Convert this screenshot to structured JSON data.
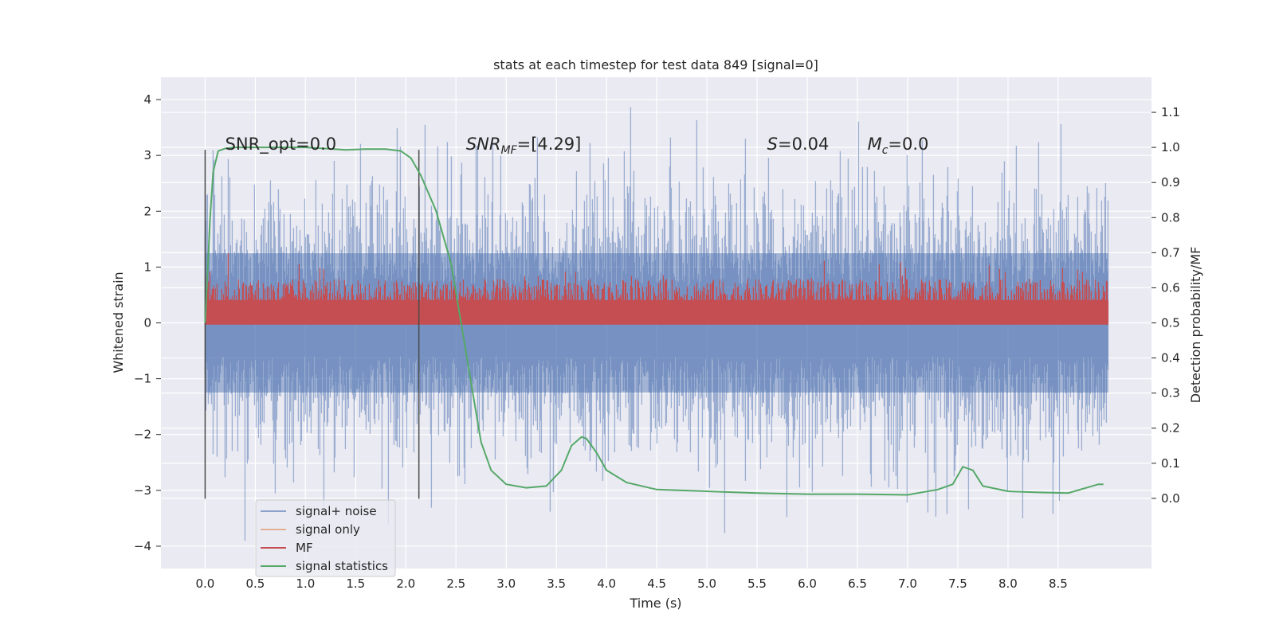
{
  "chart_data": {
    "type": "line",
    "title": "stats at each timestep for test data 849 [signal=0]",
    "xlabel": "Time (s)",
    "ylabel": "Whitened strain",
    "ylabel_right": "Detection probability/MF",
    "xlim": [
      -0.44,
      9.43
    ],
    "ylim": [
      -4.4,
      4.4
    ],
    "ylim_right": [
      -0.2,
      1.2
    ],
    "x_ticks": [
      0.0,
      0.5,
      1.0,
      1.5,
      2.0,
      2.5,
      3.0,
      3.5,
      4.0,
      4.5,
      5.0,
      5.5,
      6.0,
      6.5,
      7.0,
      7.5,
      8.0,
      8.5
    ],
    "x_tick_labels": [
      "0.0",
      "0.5",
      "1.0",
      "1.5",
      "2.0",
      "2.5",
      "3.0",
      "3.5",
      "4.0",
      "4.5",
      "5.0",
      "5.5",
      "6.0",
      "6.5",
      "7.0",
      "7.5",
      "8.0",
      "8.5"
    ],
    "y_ticks": [
      -4,
      -3,
      -2,
      -1,
      0,
      1,
      2,
      3,
      4
    ],
    "y_tick_labels": [
      "−4",
      "−3",
      "−2",
      "−1",
      "0",
      "1",
      "2",
      "3",
      "4"
    ],
    "y_right_ticks": [
      0.0,
      0.1,
      0.2,
      0.3,
      0.4,
      0.5,
      0.6,
      0.7,
      0.8,
      0.9,
      1.0,
      1.1
    ],
    "y_right_tick_labels": [
      "0.0",
      "0.1",
      "0.2",
      "0.3",
      "0.4",
      "0.5",
      "0.6",
      "0.7",
      "0.8",
      "0.9",
      "1.0",
      "1.1"
    ],
    "grid": true,
    "legend_position": "bottom-left",
    "vlines": [
      0.0,
      2.13
    ],
    "vline_range": [
      -3.15,
      3.1
    ],
    "annotations": [
      {
        "id": "snr-opt",
        "text": "SNR_opt=0.0",
        "x": 0.2,
        "y": 3.2
      },
      {
        "id": "snr-mf",
        "text": "SNR",
        "sub": "MF",
        "rest": "=[4.29]",
        "x": 2.6,
        "y": 3.2
      },
      {
        "id": "s-val",
        "text": "S",
        "rest": "=0.04",
        "x": 5.6,
        "y": 3.2
      },
      {
        "id": "mc-val",
        "text": "M",
        "sub": "c",
        "rest": "=0.0",
        "x": 6.6,
        "y": 3.2
      }
    ],
    "noise": {
      "x_start": 0.0,
      "x_end": 9.0,
      "typical_range": [
        -1.9,
        1.9
      ],
      "extreme_range": [
        -4.0,
        4.0
      ]
    },
    "mf": {
      "x_start": 0.0,
      "x_end": 9.0,
      "right_axis_range": [
        0.5,
        0.64
      ]
    },
    "series": [
      {
        "name": "signal+ noise",
        "color": "#4c72b0",
        "axis": "left"
      },
      {
        "name": "signal only",
        "color": "#dd8452",
        "axis": "left"
      },
      {
        "name": "MF",
        "color": "#c44e52",
        "axis": "right"
      },
      {
        "name": "signal statistics",
        "color": "#55a868",
        "axis": "right",
        "x": [
          0.0,
          0.05,
          0.08,
          0.13,
          0.2,
          0.3,
          0.5,
          0.8,
          1.0,
          1.2,
          1.4,
          1.6,
          1.8,
          1.95,
          2.05,
          2.15,
          2.3,
          2.45,
          2.55,
          2.65,
          2.75,
          2.85,
          3.0,
          3.2,
          3.4,
          3.55,
          3.65,
          3.75,
          3.8,
          3.9,
          4.0,
          4.2,
          4.5,
          5.0,
          5.5,
          6.0,
          6.5,
          7.0,
          7.3,
          7.45,
          7.55,
          7.65,
          7.75,
          8.0,
          8.3,
          8.6,
          8.9,
          8.95
        ],
        "y": [
          0.5,
          0.8,
          0.93,
          0.99,
          0.997,
          1.0,
          1.0,
          1.0,
          1.0,
          0.997,
          0.993,
          0.995,
          0.995,
          0.99,
          0.97,
          0.92,
          0.82,
          0.67,
          0.5,
          0.33,
          0.16,
          0.08,
          0.04,
          0.03,
          0.035,
          0.08,
          0.15,
          0.175,
          0.17,
          0.13,
          0.08,
          0.045,
          0.025,
          0.02,
          0.015,
          0.012,
          0.012,
          0.01,
          0.025,
          0.04,
          0.09,
          0.08,
          0.035,
          0.02,
          0.017,
          0.015,
          0.04,
          0.04
        ]
      }
    ]
  }
}
